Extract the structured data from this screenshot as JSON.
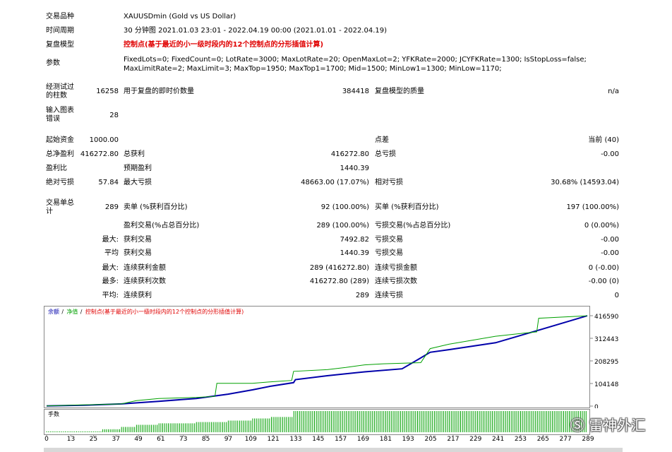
{
  "report": {
    "symbol_label": "交易品种",
    "symbol": "XAUUSDmin (Gold vs US Dollar)",
    "period_label": "时间周期",
    "period": "30 分钟图 2021.01.03 23:01 - 2022.04.19 00:00 (2021.01.01 - 2022.04.19)",
    "model_label": "复盘模型",
    "model": "控制点(基于最近的小一级时段内的12个控制点的分形插值计算)",
    "params_label": "参数",
    "params_line1": "FixedLots=0; FixedCount=0; LotRate=3000; MaxLotRate=20; OpenMaxLot=2; YFKRate=2000; JCYFKRate=1300; IsStopLoss=false;",
    "params_line2": "MaxLimitRate=2; MaxLimit=3; MaxTop=1950; MaxTop1=1700; Mid=1500; MinLow1=1300; MinLow=1170;",
    "bars_label1": "经测试过",
    "bars_label2": "的柱数",
    "bars": "16258",
    "ticks_label": "用于复盘的即时价数量",
    "ticks": "384418",
    "quality_label": "复盘模型的质量",
    "quality": "n/a",
    "errors_label1": "输入图表",
    "errors_label2": "错误",
    "errors": "28"
  },
  "stats": {
    "deposit_label": "起始资金",
    "deposit": "1000.00",
    "spread_label": "点差",
    "spread": "当前 (40)",
    "net_label": "总净盈利",
    "net": "416272.80",
    "gross_profit_label": "总获利",
    "gross_profit": "416272.80",
    "gross_loss_label": "总亏损",
    "gross_loss": "-0.00",
    "pf_label": "盈利比",
    "payoff_label": "预期盈利",
    "payoff": "1440.39",
    "abs_dd_label": "绝对亏损",
    "abs_dd": "57.84",
    "max_dd_label": "最大亏损",
    "max_dd": "48663.00 (17.07%)",
    "rel_dd_label": "相对亏损",
    "rel_dd": "30.68% (14593.04)",
    "trades_label1": "交易单总",
    "trades_label2": "计",
    "trades": "289",
    "short_label": "卖单 (%获利百分比)",
    "short": "92 (100.00%)",
    "long_label": "买单 (%获利百分比)",
    "long": "197 (100.00%)",
    "profit_trades_label": "盈利交易(%占总百分比)",
    "profit_trades": "289 (100.00%)",
    "loss_trades_label": "亏损交易(%占总百分比)",
    "loss_trades": "0 (0.00%)",
    "largest_label": "最大:",
    "largest_profit_label": "获利交易",
    "largest_profit": "7492.82",
    "largest_loss_label": "亏损交易",
    "largest_loss": "-0.00",
    "average_label": "平均",
    "avg_profit_label": "获利交易",
    "avg_profit": "1440.39",
    "avg_loss_label": "亏损交易",
    "avg_loss": "-0.00",
    "max_label": "最大:",
    "max_cons_wins_amt_label": "连续获利金额",
    "max_cons_wins_amt": "289 (416272.80)",
    "max_cons_loss_amt_label": "连续亏损金额",
    "max_cons_loss_amt": "0 (-0.00)",
    "most_label": "最多:",
    "most_cons_wins_label": "连续获利次数",
    "most_cons_wins": "416272.80 (289)",
    "most_cons_loss_label": "连续亏损次数",
    "most_cons_loss": "-0.00 (0)",
    "avg2_label": "平均:",
    "avg_cons_wins_label": "连续获利",
    "avg_cons_wins": "289",
    "avg_cons_loss_label": "连续亏损",
    "avg_cons_loss": "0"
  },
  "chart_data": [
    {
      "type": "line",
      "legend": [
        {
          "name": "余额",
          "color": "#0000aa"
        },
        {
          "name": "净值",
          "color": "#00a000"
        },
        {
          "name": "控制点(基于最近的小一级时段内的12个控制点的分形插值计算)",
          "color": "#e00000"
        }
      ],
      "yticks": [
        "416590",
        "312443",
        "208295",
        "104148",
        "0"
      ],
      "ylim": [
        0,
        416590
      ],
      "xlim": [
        0,
        289
      ],
      "series": [
        {
          "name": "余额",
          "color": "#0000aa",
          "x": [
            0,
            20,
            40,
            60,
            80,
            97,
            110,
            120,
            132,
            133,
            150,
            170,
            190,
            200,
            205,
            215,
            240,
            265,
            289
          ],
          "y": [
            1000,
            4000,
            10000,
            22000,
            35000,
            55000,
            75000,
            92000,
            108000,
            122000,
            140000,
            158000,
            172000,
            222000,
            248000,
            260000,
            292000,
            355000,
            416272
          ]
        },
        {
          "name": "净值",
          "color": "#00a000",
          "x": [
            0,
            40,
            48,
            60,
            80,
            90,
            91,
            110,
            120,
            131,
            132,
            150,
            160,
            170,
            180,
            200,
            205,
            215,
            240,
            255,
            262,
            263,
            289
          ],
          "y": [
            1000,
            10000,
            25000,
            35000,
            40000,
            45000,
            105000,
            105000,
            112000,
            118000,
            160000,
            168000,
            178000,
            190000,
            195000,
            200000,
            265000,
            285000,
            322000,
            336000,
            342000,
            405000,
            416272
          ]
        }
      ]
    },
    {
      "type": "bar",
      "label": "手数",
      "color": "#00a000",
      "xticks": [
        0,
        13,
        25,
        37,
        49,
        61,
        73,
        85,
        97,
        109,
        121,
        133,
        145,
        157,
        169,
        181,
        193,
        205,
        217,
        229,
        241,
        253,
        265,
        277,
        289
      ],
      "count": 289,
      "ylim": [
        0,
        100
      ],
      "levels": [
        [
          0,
          4
        ],
        [
          30,
          14
        ],
        [
          40,
          25
        ],
        [
          48,
          35
        ],
        [
          60,
          42
        ],
        [
          80,
          48
        ],
        [
          97,
          55
        ],
        [
          110,
          65
        ],
        [
          120,
          72
        ],
        [
          132,
          100
        ]
      ]
    }
  ],
  "watermark": "雷神外汇"
}
